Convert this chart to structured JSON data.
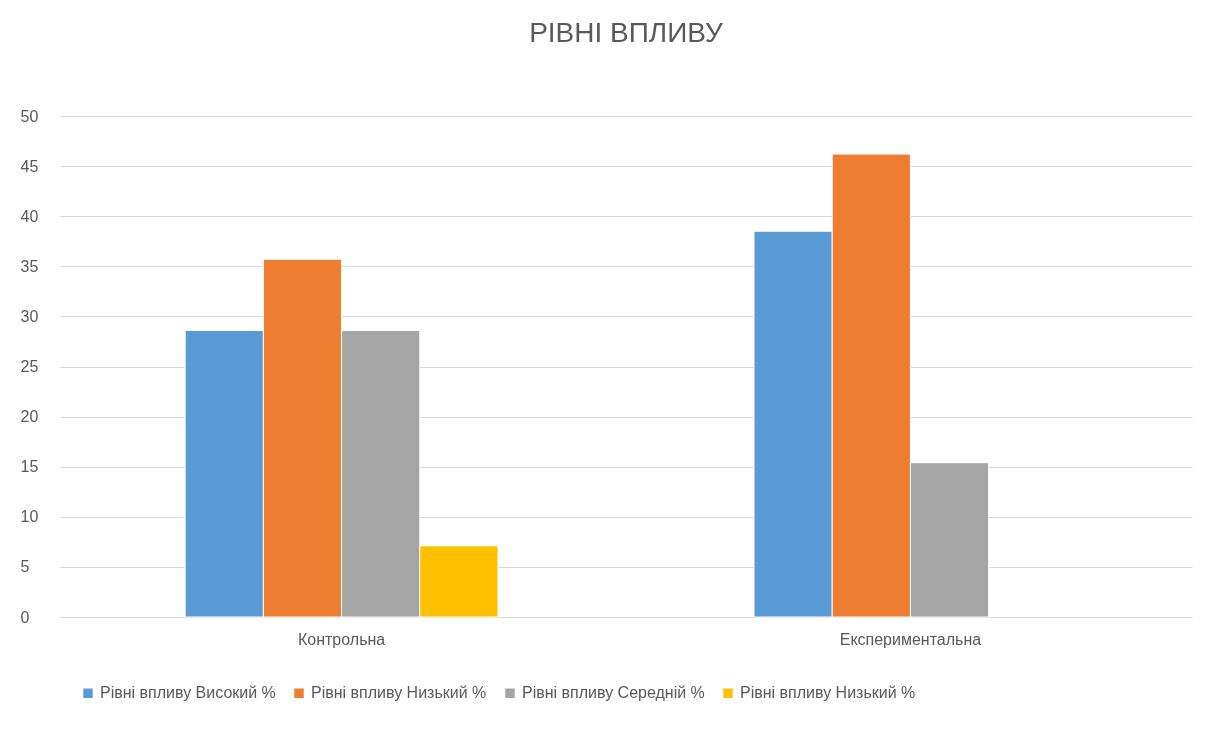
{
  "chart_data": {
    "type": "bar",
    "title": "РІВНІ ВПЛИВУ",
    "categories": [
      "Контрольна",
      "Експериментальна"
    ],
    "series": [
      {
        "name": "Рівні впливу Високий %",
        "color": "#5b9bd5",
        "values": [
          28.6,
          38.5
        ]
      },
      {
        "name": "Рівні впливу Низький %",
        "color": "#ed7d31",
        "values": [
          35.7,
          46.2
        ]
      },
      {
        "name": "Рівні впливу Середній %",
        "color": "#a5a5a5",
        "values": [
          28.6,
          15.4
        ]
      },
      {
        "name": "Рівні впливу Низький %",
        "color": "#ffc000",
        "values": [
          7.1,
          null
        ]
      }
    ],
    "ylim": [
      0,
      50
    ],
    "yticks": [
      0,
      5,
      10,
      15,
      20,
      25,
      30,
      35,
      40,
      45,
      50
    ],
    "grid": "y",
    "legend": "bottom"
  }
}
